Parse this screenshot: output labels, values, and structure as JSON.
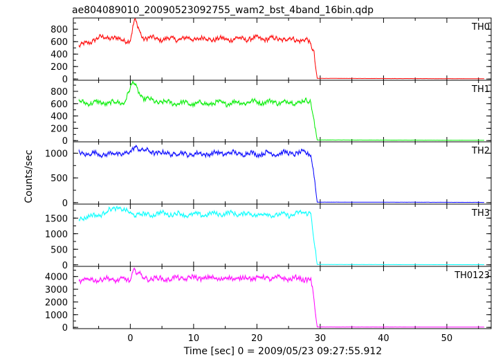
{
  "title": "ae804089010_20090523092755_wam2_bst_4band_16bin.qdp",
  "xlabel": "Time [sec] 0 = 2009/05/23 09:27:55.912",
  "ylabel": "Counts/sec",
  "chart_data": {
    "type": "line",
    "title": "ae804089010_20090523092755_wam2_bst_4band_16bin.qdp",
    "xlabel": "Time [sec] 0 = 2009/05/23 09:27:55.912",
    "ylabel": "Counts/sec",
    "xlim": [
      -9,
      57
    ],
    "xticks": [
      0,
      10,
      20,
      30,
      40,
      50
    ],
    "x_tick_labels": [
      "0",
      "10",
      "20",
      "30",
      "40",
      "50"
    ],
    "cutoff_time": 29.3,
    "panels": [
      {
        "name": "TH0",
        "color": "#ff0000",
        "ylim": [
          -20,
          980
        ],
        "yticks": [
          0,
          200,
          400,
          600,
          800
        ],
        "y_tick_labels": [
          "0",
          "200",
          "400",
          "600",
          "800"
        ],
        "points": [
          [
            -8,
            520
          ],
          [
            -6,
            620
          ],
          [
            -4,
            680
          ],
          [
            -2,
            640
          ],
          [
            0,
            620
          ],
          [
            0.7,
            950
          ],
          [
            2,
            660
          ],
          [
            5,
            640
          ],
          [
            10,
            650
          ],
          [
            15,
            640
          ],
          [
            20,
            650
          ],
          [
            25,
            640
          ],
          [
            28,
            620
          ],
          [
            29,
            450
          ],
          [
            29.5,
            10
          ],
          [
            56,
            5
          ]
        ]
      },
      {
        "name": "TH1",
        "color": "#00ee00",
        "ylim": [
          -20,
          980
        ],
        "yticks": [
          0,
          200,
          400,
          600,
          800
        ],
        "y_tick_labels": [
          "0",
          "200",
          "400",
          "600",
          "800"
        ],
        "points": [
          [
            -8,
            620
          ],
          [
            -4,
            610
          ],
          [
            -1,
            620
          ],
          [
            0.5,
            950
          ],
          [
            2,
            680
          ],
          [
            5,
            620
          ],
          [
            10,
            600
          ],
          [
            15,
            610
          ],
          [
            20,
            630
          ],
          [
            25,
            620
          ],
          [
            28.5,
            640
          ],
          [
            29,
            350
          ],
          [
            29.5,
            10
          ],
          [
            56,
            5
          ]
        ]
      },
      {
        "name": "TH2",
        "color": "#0000ff",
        "ylim": [
          -30,
          1230
        ],
        "yticks": [
          0,
          500,
          1000
        ],
        "y_tick_labels": [
          "0",
          "500",
          "1000"
        ],
        "points": [
          [
            -8,
            1000
          ],
          [
            -4,
            980
          ],
          [
            0,
            1000
          ],
          [
            0.8,
            1150
          ],
          [
            2,
            1050
          ],
          [
            5,
            1000
          ],
          [
            10,
            980
          ],
          [
            15,
            1000
          ],
          [
            20,
            990
          ],
          [
            25,
            1000
          ],
          [
            28.5,
            1000
          ],
          [
            29,
            600
          ],
          [
            29.5,
            10
          ],
          [
            56,
            5
          ]
        ]
      },
      {
        "name": "TH3",
        "color": "#00ffff",
        "ylim": [
          -50,
          1950
        ],
        "yticks": [
          0,
          500,
          1000,
          1500
        ],
        "y_tick_labels": [
          "0",
          "500",
          "1000",
          "1500"
        ],
        "points": [
          [
            -8,
            1500
          ],
          [
            -5,
            1600
          ],
          [
            -2,
            1850
          ],
          [
            0,
            1650
          ],
          [
            2,
            1600
          ],
          [
            5,
            1650
          ],
          [
            10,
            1600
          ],
          [
            15,
            1650
          ],
          [
            20,
            1620
          ],
          [
            25,
            1600
          ],
          [
            28.5,
            1700
          ],
          [
            29,
            800
          ],
          [
            29.5,
            10
          ],
          [
            56,
            5
          ]
        ]
      },
      {
        "name": "TH0123",
        "color": "#ff00ff",
        "ylim": [
          -100,
          4800
        ],
        "yticks": [
          0,
          1000,
          2000,
          3000,
          4000
        ],
        "y_tick_labels": [
          "0",
          "1000",
          "2000",
          "3000",
          "4000"
        ],
        "points": [
          [
            -8,
            3700
          ],
          [
            -4,
            3800
          ],
          [
            0,
            3700
          ],
          [
            0.5,
            4600
          ],
          [
            2,
            3900
          ],
          [
            5,
            3800
          ],
          [
            10,
            3900
          ],
          [
            15,
            3850
          ],
          [
            20,
            3900
          ],
          [
            25,
            3850
          ],
          [
            28.5,
            3800
          ],
          [
            29,
            2200
          ],
          [
            29.5,
            30
          ],
          [
            56,
            20
          ]
        ]
      }
    ]
  }
}
